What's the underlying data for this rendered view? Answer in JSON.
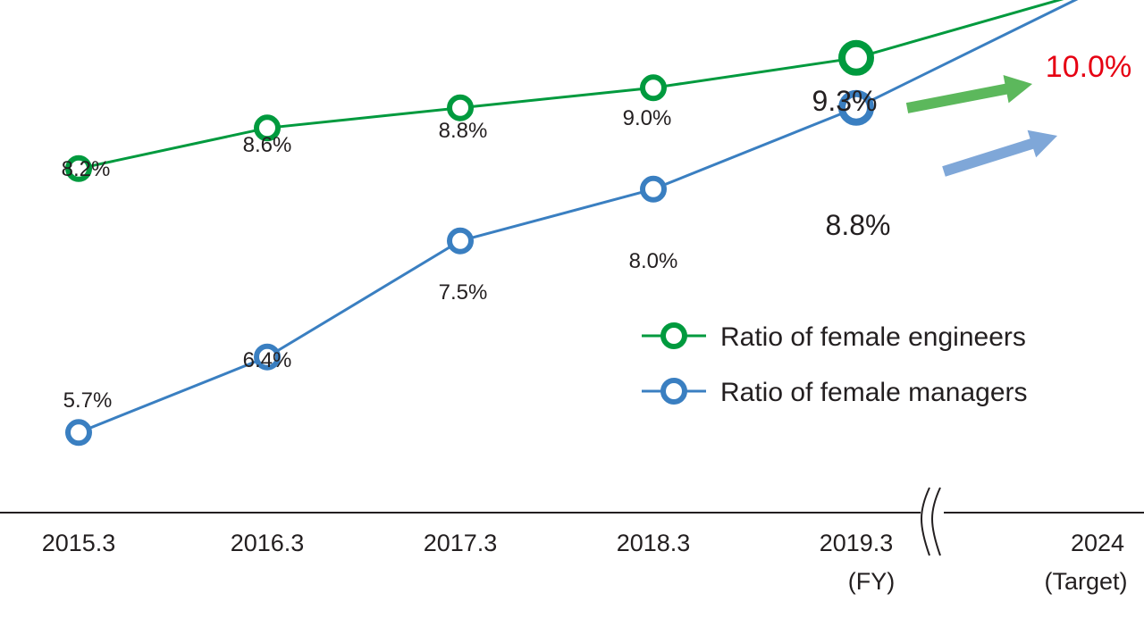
{
  "chart_data": {
    "type": "line",
    "categories": [
      "2015.3",
      "2016.3",
      "2017.3",
      "2018.3",
      "2019.3",
      "2024"
    ],
    "category_sublabels": [
      "",
      "",
      "",
      "",
      "(FY)",
      "(Target)"
    ],
    "axis_break_between": [
      "2019.3",
      "2024"
    ],
    "series": [
      {
        "name": "Ratio of female engineers",
        "color": "#009a3e",
        "values": [
          8.2,
          8.6,
          8.8,
          9.0,
          9.3,
          10.0
        ],
        "labels": [
          "8.2%",
          "8.6%",
          "8.8%",
          "9.0%",
          "9.3%",
          ""
        ]
      },
      {
        "name": "Ratio of female managers",
        "color": "#3a7fc1",
        "values": [
          5.7,
          6.4,
          7.5,
          8.0,
          8.8,
          10.0
        ],
        "labels": [
          "5.7%",
          "6.4%",
          "7.5%",
          "8.0%",
          "8.8%",
          ""
        ]
      }
    ],
    "target_label": "10.0%",
    "target_color": "#e60012",
    "arrow_colors": [
      "#5cb85c",
      "#7fa7d8"
    ],
    "legend_position": "right",
    "grid": false
  }
}
